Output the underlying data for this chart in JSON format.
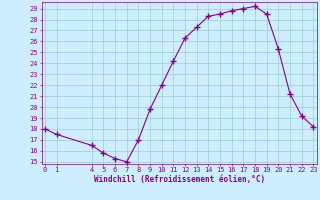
{
  "x": [
    0,
    1,
    4,
    5,
    6,
    7,
    8,
    9,
    10,
    11,
    12,
    13,
    14,
    15,
    16,
    17,
    18,
    19,
    20,
    21,
    22,
    23
  ],
  "y": [
    18.0,
    17.5,
    16.5,
    15.8,
    15.3,
    15.0,
    17.0,
    19.8,
    22.0,
    24.2,
    26.3,
    27.3,
    28.3,
    28.5,
    28.8,
    29.0,
    29.2,
    28.5,
    25.3,
    21.2,
    19.2,
    18.2
  ],
  "line_color": "#880088",
  "marker": "+",
  "marker_size": 4,
  "bg_color": "#cceeff",
  "grid_color": "#99cccc",
  "xlabel": "Windchill (Refroidissement éolien,°C)",
  "xlabel_fontsize": 5.5,
  "xticks": [
    0,
    1,
    4,
    5,
    6,
    7,
    8,
    9,
    10,
    11,
    12,
    13,
    14,
    15,
    16,
    17,
    18,
    19,
    20,
    21,
    22,
    23
  ],
  "yticks": [
    15,
    16,
    17,
    18,
    19,
    20,
    21,
    22,
    23,
    24,
    25,
    26,
    27,
    28,
    29
  ],
  "ylim": [
    14.8,
    29.6
  ],
  "xlim": [
    -0.3,
    23.3
  ],
  "tick_color": "#880088",
  "tick_fontsize": 5.0,
  "spine_color": "#880088"
}
